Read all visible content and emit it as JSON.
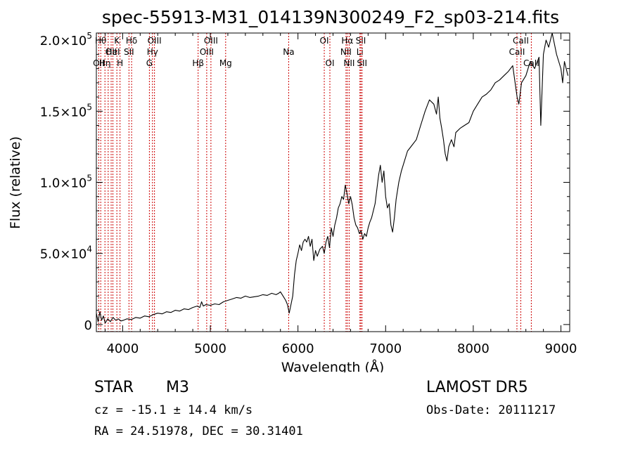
{
  "chart_data": {
    "type": "line",
    "title": "spec-55913-M31_014139N300249_F2_sp03-214.fits",
    "xlabel": "Wavelength (Å)",
    "ylabel": "Flux (relative)",
    "xlim": [
      3700,
      9100
    ],
    "ylim": [
      -5000,
      205000
    ],
    "x_ticks": [
      4000,
      5000,
      6000,
      7000,
      8000,
      9000
    ],
    "x_tick_labels": [
      "4000",
      "5000",
      "6000",
      "7000",
      "8000",
      "9000"
    ],
    "y_ticks": [
      0,
      50000,
      100000,
      150000,
      200000
    ],
    "y_tick_labels": [
      {
        "mant": "0",
        "exp": ""
      },
      {
        "mant": "5.0×10",
        "exp": "4"
      },
      {
        "mant": "1.0×10",
        "exp": "5"
      },
      {
        "mant": "1.5×10",
        "exp": "5"
      },
      {
        "mant": "2.0×10",
        "exp": "5"
      }
    ],
    "line_color": "#000000",
    "marker_color": "#cc0000",
    "series": [
      {
        "x": [
          3700,
          3720,
          3740,
          3760,
          3780,
          3800,
          3830,
          3860,
          3890,
          3920,
          3950,
          3980,
          4010,
          4050,
          4100,
          4150,
          4200,
          4250,
          4300,
          4350,
          4400,
          4450,
          4500,
          4550,
          4600,
          4650,
          4700,
          4750,
          4800,
          4850,
          4880,
          4900,
          4920,
          4950,
          5000,
          5050,
          5100,
          5150,
          5200,
          5250,
          5300,
          5350,
          5400,
          5450,
          5500,
          5550,
          5600,
          5650,
          5700,
          5750,
          5780,
          5800,
          5830,
          5860,
          5880,
          5900,
          5920,
          5940,
          5960,
          5980,
          6000,
          6020,
          6040,
          6060,
          6080,
          6100,
          6120,
          6140,
          6160,
          6180,
          6200,
          6220,
          6250,
          6280,
          6300,
          6320,
          6340,
          6360,
          6380,
          6400,
          6420,
          6440,
          6460,
          6480,
          6500,
          6520,
          6540,
          6560,
          6580,
          6600,
          6620,
          6640,
          6660,
          6680,
          6700,
          6720,
          6740,
          6760,
          6780,
          6800,
          6820,
          6840,
          6860,
          6880,
          6900,
          6920,
          6940,
          6960,
          6980,
          7000,
          7020,
          7040,
          7060,
          7080,
          7100,
          7120,
          7150,
          7180,
          7200,
          7250,
          7300,
          7350,
          7400,
          7450,
          7500,
          7550,
          7580,
          7600,
          7620,
          7640,
          7660,
          7680,
          7700,
          7720,
          7750,
          7780,
          7800,
          7850,
          7900,
          7950,
          8000,
          8050,
          8100,
          8150,
          8200,
          8250,
          8300,
          8350,
          8400,
          8450,
          8500,
          8520,
          8550,
          8600,
          8650,
          8700,
          8750,
          8770,
          8800,
          8830,
          8860,
          8900,
          8950,
          9000,
          9020,
          9040,
          9060,
          9080
        ],
        "y": [
          8000,
          2000,
          9000,
          3000,
          6000,
          1000,
          4000,
          2000,
          5000,
          3000,
          4000,
          2500,
          3000,
          4000,
          3500,
          5000,
          4500,
          6000,
          5500,
          7000,
          8000,
          7500,
          9000,
          8500,
          10000,
          9500,
          11000,
          10500,
          12000,
          13000,
          12000,
          16000,
          13000,
          14000,
          13500,
          14500,
          14000,
          16000,
          17000,
          18000,
          19000,
          18500,
          20000,
          19000,
          19500,
          20000,
          21000,
          20500,
          22000,
          21000,
          22000,
          23000,
          20000,
          17000,
          14000,
          8000,
          14000,
          20000,
          35000,
          45000,
          50000,
          56000,
          52000,
          58000,
          60000,
          58000,
          62000,
          55000,
          60000,
          45000,
          52000,
          48000,
          53000,
          55000,
          50000,
          58000,
          62000,
          54000,
          68000,
          62000,
          70000,
          75000,
          82000,
          85000,
          90000,
          88000,
          98000,
          92000,
          85000,
          90000,
          84000,
          75000,
          70000,
          68000,
          64000,
          66000,
          60000,
          64000,
          62000,
          68000,
          72000,
          75000,
          80000,
          85000,
          95000,
          105000,
          112000,
          100000,
          108000,
          90000,
          82000,
          85000,
          70000,
          65000,
          75000,
          88000,
          100000,
          108000,
          112000,
          122000,
          126000,
          130000,
          140000,
          150000,
          158000,
          155000,
          148000,
          160000,
          145000,
          138000,
          130000,
          120000,
          115000,
          125000,
          130000,
          125000,
          135000,
          138000,
          140000,
          142000,
          150000,
          155000,
          160000,
          162000,
          165000,
          170000,
          172000,
          175000,
          178000,
          182000,
          160000,
          155000,
          170000,
          175000,
          185000,
          180000,
          188000,
          140000,
          190000,
          200000,
          195000,
          205000,
          190000,
          180000,
          170000,
          185000,
          180000,
          175000
        ]
      }
    ],
    "markers": [
      {
        "x": 3727,
        "label": "OII",
        "row": 3
      },
      {
        "x": 3750,
        "label": "Hθ",
        "row": 1
      },
      {
        "x": 3798,
        "label": "Hη",
        "row": 3
      },
      {
        "x": 3835,
        "label": "",
        "row": 0
      },
      {
        "x": 3869,
        "label": "OII",
        "row": 2
      },
      {
        "x": 3889,
        "label": "HeI",
        "row": 2
      },
      {
        "x": 3934,
        "label": "K",
        "row": 1
      },
      {
        "x": 3970,
        "label": "H",
        "row": 3
      },
      {
        "x": 4072,
        "label": "SII",
        "row": 2
      },
      {
        "x": 4102,
        "label": "Hδ",
        "row": 1
      },
      {
        "x": 4305,
        "label": "G",
        "row": 3
      },
      {
        "x": 4340,
        "label": "Hγ",
        "row": 2
      },
      {
        "x": 4363,
        "label": "OIII",
        "row": 1
      },
      {
        "x": 4861,
        "label": "Hβ",
        "row": 3
      },
      {
        "x": 4959,
        "label": "OIII",
        "row": 2
      },
      {
        "x": 5007,
        "label": "OIII",
        "row": 1
      },
      {
        "x": 5175,
        "label": "Mg",
        "row": 3
      },
      {
        "x": 5894,
        "label": "Na",
        "row": 2
      },
      {
        "x": 6300,
        "label": "OI",
        "row": 1
      },
      {
        "x": 6364,
        "label": "OI",
        "row": 3
      },
      {
        "x": 6548,
        "label": "NII",
        "row": 2
      },
      {
        "x": 6563,
        "label": "Hα",
        "row": 1
      },
      {
        "x": 6584,
        "label": "NII",
        "row": 3
      },
      {
        "x": 6707,
        "label": "Li",
        "row": 2
      },
      {
        "x": 6717,
        "label": "SII",
        "row": 1
      },
      {
        "x": 6731,
        "label": "SII",
        "row": 3
      },
      {
        "x": 8498,
        "label": "CaII",
        "row": 2
      },
      {
        "x": 8542,
        "label": "CaII",
        "row": 1
      },
      {
        "x": 8662,
        "label": "CaII",
        "row": 3
      }
    ]
  },
  "info": {
    "object_class": "STAR",
    "subclass": "M3",
    "survey": "LAMOST DR5",
    "cz": "cz = -15.1 ± 14.4 km/s",
    "obs_date": "Obs-Date: 20111217",
    "coords": "RA =  24.51978, DEC =  30.31401"
  }
}
